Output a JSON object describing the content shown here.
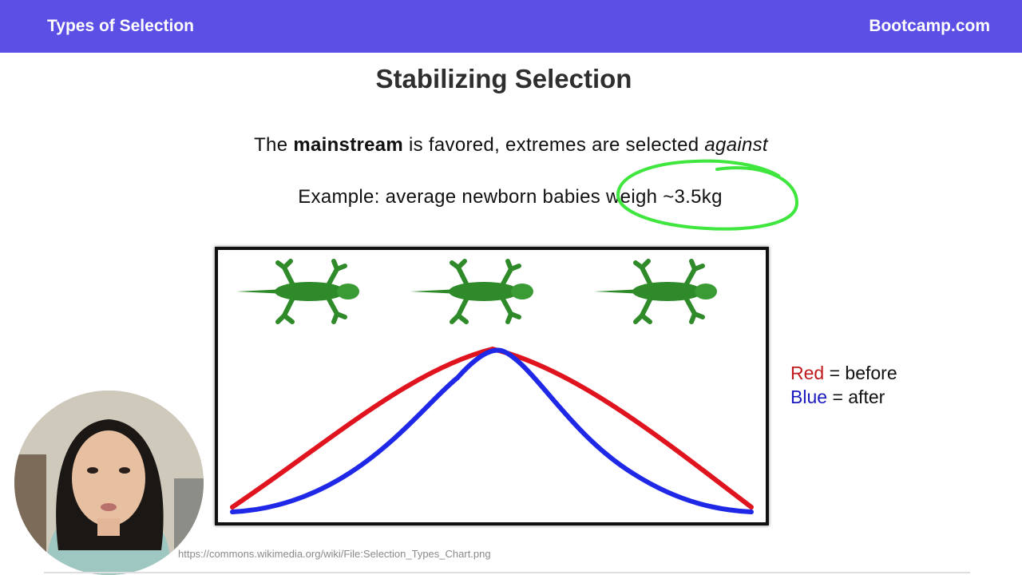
{
  "header": {
    "title": "Types of Selection",
    "brand": "Bootcamp.com"
  },
  "slide": {
    "title": "Stabilizing Selection",
    "statement": {
      "prefix": "The",
      "emphasis": "mainstream",
      "middle": "is favored, extremes are selected",
      "italic": "against"
    },
    "example": "Example: average newborn babies weigh ~3.5kg"
  },
  "legend": {
    "red_label": "Red",
    "red_text": "= before",
    "blue_label": "Blue",
    "blue_text": "= after"
  },
  "source": "https://commons.wikimedia.org/wiki/File:Selection_Types_Chart.png",
  "colors": {
    "header_bg": "#5b4fe6",
    "annotation": "#3ee63e",
    "before_curve": "#e0141e",
    "after_curve": "#1e28e6",
    "lizard": "#2f8a2a"
  },
  "figure": {
    "icons": [
      "lizard-icon",
      "lizard-icon",
      "lizard-icon"
    ]
  }
}
